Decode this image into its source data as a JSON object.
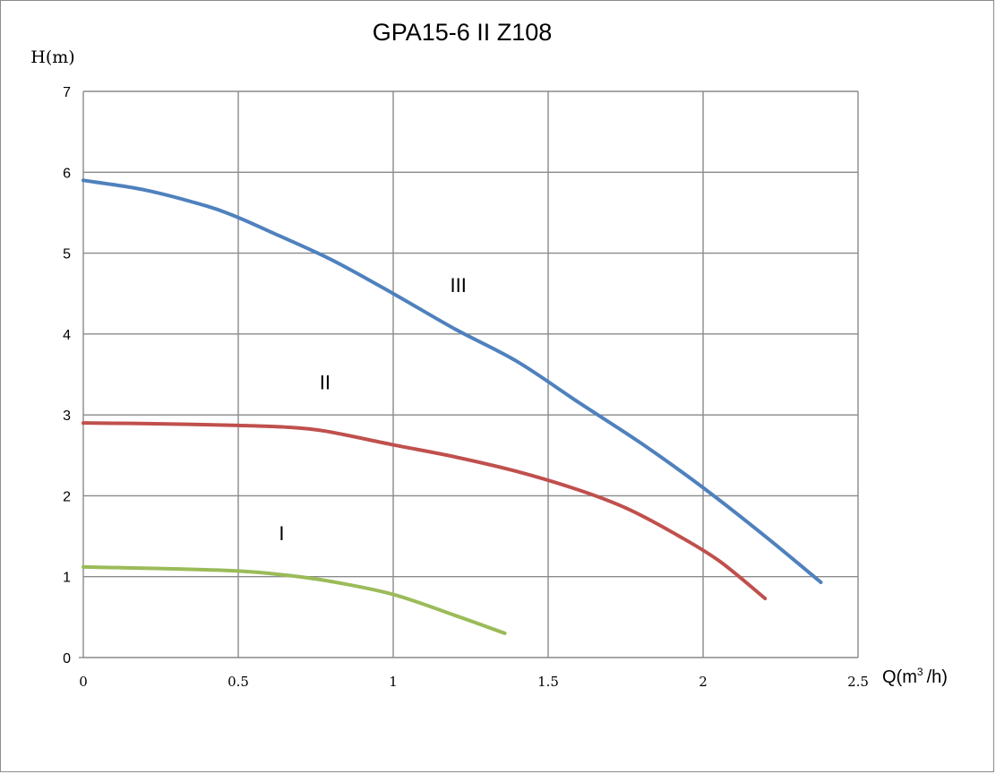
{
  "chart_data": {
    "type": "line",
    "title": "GPA15-6 II Z108",
    "ylabel": "H(m)",
    "xlabel_main": "Q(m",
    "xlabel_sup": "3",
    "xlabel_tail": "/h)",
    "xlim": [
      0,
      2.5
    ],
    "ylim": [
      0,
      7
    ],
    "xticks": [
      0,
      0.5,
      1,
      1.5,
      2,
      2.5
    ],
    "xtick_labels": [
      "0",
      "0.5",
      "1",
      "1.5",
      "2",
      "2.5"
    ],
    "yticks": [
      0,
      1,
      2,
      3,
      4,
      5,
      6,
      7
    ],
    "ytick_labels": [
      "0",
      "1",
      "2",
      "3",
      "4",
      "5",
      "6",
      "7"
    ],
    "grid": true,
    "series": [
      {
        "name": "I",
        "color": "#9bbb59",
        "label_pos": [
          0.64,
          1.45
        ],
        "x": [
          0,
          0.25,
          0.5,
          0.65,
          0.8,
          1.0,
          1.2,
          1.36
        ],
        "y": [
          1.12,
          1.1,
          1.07,
          1.02,
          0.94,
          0.78,
          0.52,
          0.3
        ]
      },
      {
        "name": "II",
        "color": "#c0504d",
        "label_pos": [
          0.78,
          3.32
        ],
        "x": [
          0,
          0.25,
          0.5,
          0.65,
          0.78,
          1.0,
          1.2,
          1.4,
          1.6,
          1.75,
          1.9,
          2.05,
          2.2
        ],
        "y": [
          2.9,
          2.89,
          2.87,
          2.85,
          2.8,
          2.63,
          2.48,
          2.3,
          2.07,
          1.85,
          1.55,
          1.2,
          0.73
        ]
      },
      {
        "name": "III",
        "color": "#4f81bd",
        "label_pos": [
          1.21,
          4.52
        ],
        "x": [
          0,
          0.2,
          0.4,
          0.5,
          0.6,
          0.8,
          1.0,
          1.2,
          1.4,
          1.6,
          1.8,
          2.0,
          2.2,
          2.38
        ],
        "y": [
          5.9,
          5.78,
          5.58,
          5.44,
          5.27,
          4.92,
          4.5,
          4.06,
          3.66,
          3.15,
          2.65,
          2.1,
          1.5,
          0.93
        ]
      }
    ]
  }
}
